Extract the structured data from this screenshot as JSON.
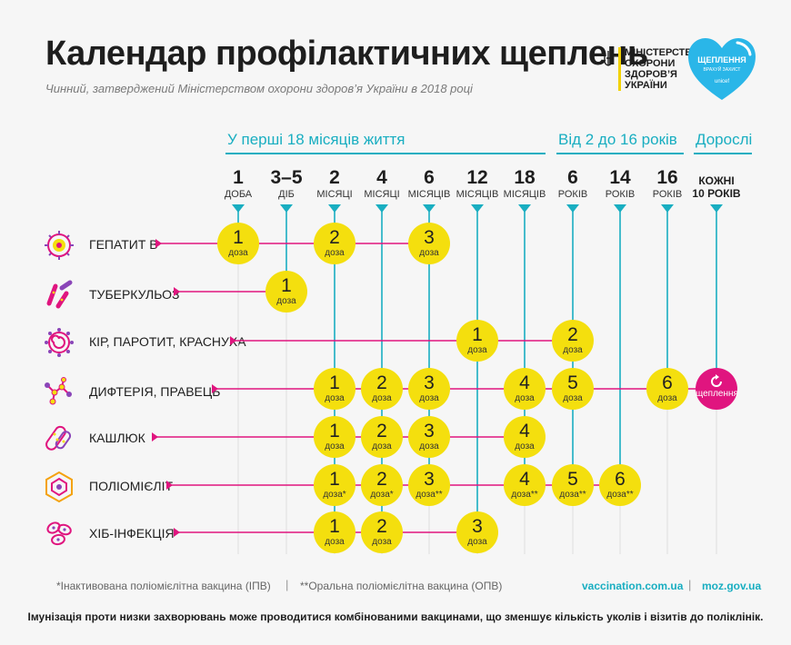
{
  "title": "Календар профілактичних щеплень",
  "subtitle": "Чинний, затверджений Міністерством охорони здоров’я України в 2018 році",
  "ministry": [
    "МІНІСТЕРСТВО",
    "ОХОРОНИ",
    "ЗДОРОВ’Я",
    "УКРАЇНИ"
  ],
  "badge": {
    "title": "ЩЕПЛЕННЯ",
    "tagline": "ВРАХУЙ ЗАХИСТ",
    "brand": "unicef"
  },
  "sections": [
    "У перші 18 місяців життя",
    "Від 2 до 16 років",
    "Дорослі"
  ],
  "ages": [
    {
      "num": "1",
      "unit": "ДОБА"
    },
    {
      "num": "3–5",
      "unit": "ДІБ"
    },
    {
      "num": "2",
      "unit": "МІСЯЦІ"
    },
    {
      "num": "4",
      "unit": "МІСЯЦІ"
    },
    {
      "num": "6",
      "unit": "МІСЯЦІВ"
    },
    {
      "num": "12",
      "unit": "МІСЯЦІВ"
    },
    {
      "num": "18",
      "unit": "МІСЯЦІВ"
    },
    {
      "num": "6",
      "unit": "РОКІВ"
    },
    {
      "num": "14",
      "unit": "РОКІВ"
    },
    {
      "num": "16",
      "unit": "РОКІВ"
    }
  ],
  "adults_age": [
    "КОЖНІ",
    "10 РОКІВ"
  ],
  "dose_word": "доза",
  "booster_label": "щеплення",
  "vaccines": [
    {
      "name": "ГЕПАТИТ В",
      "icon": "hepatitis-virus-icon",
      "doses": [
        {
          "age": 0,
          "n": "1",
          "mark": ""
        },
        {
          "age": 2,
          "n": "2",
          "mark": ""
        },
        {
          "age": 4,
          "n": "3",
          "mark": ""
        }
      ]
    },
    {
      "name": "ТУБЕРКУЛЬОЗ",
      "icon": "tuberculosis-bacteria-icon",
      "doses": [
        {
          "age": 1,
          "n": "1",
          "mark": ""
        }
      ]
    },
    {
      "name": "КІР, ПАРОТИТ, КРАСНУХА",
      "icon": "measles-virus-icon",
      "doses": [
        {
          "age": 5,
          "n": "1",
          "mark": ""
        },
        {
          "age": 7,
          "n": "2",
          "mark": ""
        }
      ]
    },
    {
      "name": "ДИФТЕРІЯ, ПРАВЕЦЬ",
      "icon": "diphtheria-molecule-icon",
      "doses": [
        {
          "age": 2,
          "n": "1",
          "mark": ""
        },
        {
          "age": 3,
          "n": "2",
          "mark": ""
        },
        {
          "age": 4,
          "n": "3",
          "mark": ""
        },
        {
          "age": 6,
          "n": "4",
          "mark": ""
        },
        {
          "age": 7,
          "n": "5",
          "mark": ""
        },
        {
          "age": 9,
          "n": "6",
          "mark": ""
        }
      ],
      "booster": true
    },
    {
      "name": "КАШЛЮК",
      "icon": "pertussis-bacteria-icon",
      "doses": [
        {
          "age": 2,
          "n": "1",
          "mark": ""
        },
        {
          "age": 3,
          "n": "2",
          "mark": ""
        },
        {
          "age": 4,
          "n": "3",
          "mark": ""
        },
        {
          "age": 6,
          "n": "4",
          "mark": ""
        }
      ]
    },
    {
      "name": "ПОЛІОМІЄЛІТ",
      "icon": "polio-virus-icon",
      "doses": [
        {
          "age": 2,
          "n": "1",
          "mark": "*"
        },
        {
          "age": 3,
          "n": "2",
          "mark": "*"
        },
        {
          "age": 4,
          "n": "3",
          "mark": "**"
        },
        {
          "age": 6,
          "n": "4",
          "mark": "**"
        },
        {
          "age": 7,
          "n": "5",
          "mark": "**"
        },
        {
          "age": 8,
          "n": "6",
          "mark": "**"
        }
      ]
    },
    {
      "name": "ХІБ-ІНФЕКЦІЯ",
      "icon": "hib-bacteria-icon",
      "doses": [
        {
          "age": 2,
          "n": "1",
          "mark": ""
        },
        {
          "age": 3,
          "n": "2",
          "mark": ""
        },
        {
          "age": 5,
          "n": "3",
          "mark": ""
        }
      ]
    }
  ],
  "footnote_ipv": "*Інактивована поліомієлітна вакцина (ІПВ)",
  "footnote_opv": "**Оральна поліомієлітна вакцина (ОПВ)",
  "separator": "|",
  "site1": "vaccination.com.ua",
  "site2": "moz.gov.ua",
  "bottom_note": "Імунізація проти низки захворювань може проводитися комбінованими вакцинами, що зменшує кількість уколів і візитів до поліклінік.",
  "colors": {
    "accent": "#19aec1",
    "dose": "#f4df0e",
    "line": "#e0157f",
    "booster": "#e0157f",
    "badge": "#2ab6e8"
  }
}
